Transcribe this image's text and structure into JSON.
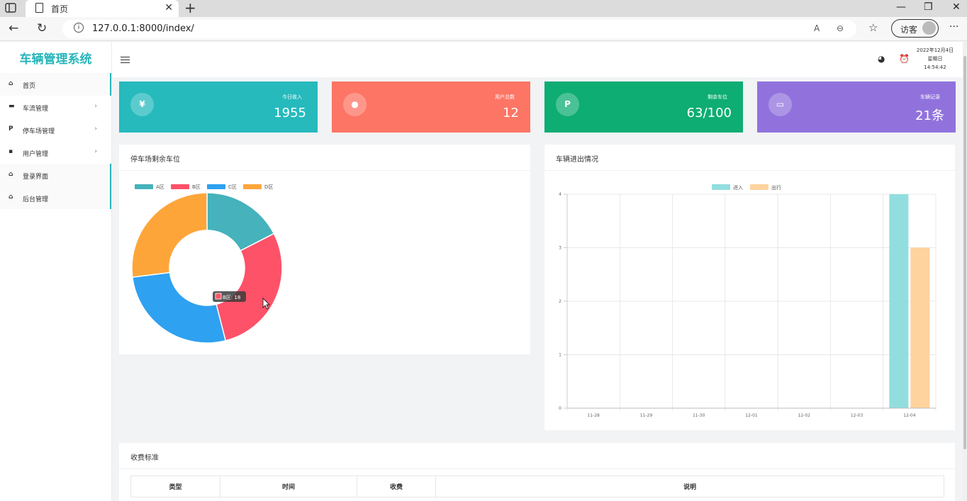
{
  "browser": {
    "tab_title": "首页",
    "tab_close": "✕",
    "new_tab": "+",
    "url": "127.0.0.1:8000/index/",
    "guest_label": "访客",
    "menu_dots": "···"
  },
  "sidebar": {
    "brand": "车辆管理系统",
    "items": [
      {
        "icon": "home-icon",
        "glyph": "⌂",
        "label": "首页",
        "arrow": ""
      },
      {
        "icon": "car-icon",
        "glyph": "▬",
        "label": "车流管理",
        "arrow": "›"
      },
      {
        "icon": "parking-icon",
        "glyph": "P",
        "label": "停车场管理",
        "arrow": "›"
      },
      {
        "icon": "user-icon",
        "glyph": "▪",
        "label": "用户管理",
        "arrow": "›"
      },
      {
        "icon": "home-icon",
        "glyph": "⌂",
        "label": "登录界面",
        "arrow": ""
      },
      {
        "icon": "home-icon",
        "glyph": "⌂",
        "label": "后台管理",
        "arrow": ""
      }
    ]
  },
  "topbar": {
    "date": "2022年12月4日",
    "weekday": "星期日",
    "time": "14:54:42"
  },
  "stats": [
    {
      "label": "今日收入",
      "value": "1955",
      "icon_text": "¥",
      "icon": "yen-icon",
      "color": "#26babd"
    },
    {
      "label": "用户总数",
      "value": "12",
      "icon_text": "●",
      "icon": "user-icon",
      "color": "#fd7564"
    },
    {
      "label": "剩余车位",
      "value": "63/100",
      "icon_text": "P",
      "icon": "parking-icon",
      "color": "#0ead74"
    },
    {
      "label": "车辆记录",
      "value": "21条",
      "icon_text": "▭",
      "icon": "chat-icon",
      "color": "#9172dd"
    }
  ],
  "pie_panel": {
    "title": "停车场剩余车位",
    "tooltip": "B区: 18"
  },
  "bar_panel": {
    "title": "车辆进出情况"
  },
  "fee_panel": {
    "title": "收费标准",
    "columns": [
      "类型",
      "时间",
      "收费",
      "说明"
    ]
  },
  "chart_data": [
    {
      "type": "pie",
      "title": "停车场剩余车位",
      "categories": [
        "A区",
        "B区",
        "C区",
        "D区"
      ],
      "values": [
        11,
        18,
        17,
        17
      ],
      "colors": [
        "#45b2bc",
        "#fe5269",
        "#2ea1f0",
        "#fea53a"
      ],
      "legend": "top-left"
    },
    {
      "type": "bar",
      "title": "车辆进出情况",
      "categories": [
        "11-28",
        "11-29",
        "11-30",
        "12-01",
        "12-02",
        "12-03",
        "12-04"
      ],
      "series": [
        {
          "name": "进入",
          "values": [
            0,
            0,
            0,
            0,
            0,
            0,
            4
          ],
          "color": "#92dedf"
        },
        {
          "name": "出行",
          "values": [
            0,
            0,
            0,
            0,
            0,
            0,
            3
          ],
          "color": "#fed39e"
        }
      ],
      "ylim": [
        0,
        4
      ],
      "yticks": [
        0,
        1,
        2,
        3,
        4
      ],
      "grid": true,
      "legend": "top-center"
    }
  ]
}
